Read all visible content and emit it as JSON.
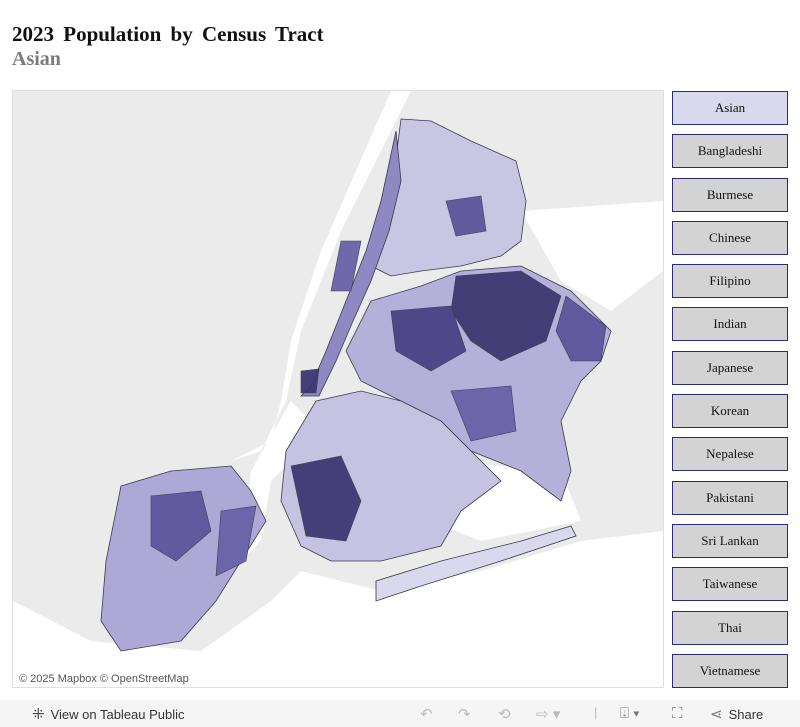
{
  "header": {
    "title": "2023 Population by Census Tract",
    "subtitle": "Asian"
  },
  "map": {
    "attribution": "© 2025 Mapbox  © OpenStreetMap",
    "colors": {
      "water": "#ffffff",
      "land": "#ebebeb",
      "low": "#d9d8ec",
      "mid": "#9e98cc",
      "high": "#5e559c",
      "highest": "#3d3670",
      "border": "#3a3a4a"
    }
  },
  "filters": {
    "selected": "Asian",
    "items": [
      "Asian",
      "Bangladeshi",
      "Burmese",
      "Chinese",
      "Filipino",
      "Indian",
      "Japanese",
      "Korean",
      "Nepalese",
      "Pakistani",
      "Sri Lankan",
      "Taiwanese",
      "Thai",
      "Vietnamese"
    ]
  },
  "toolbar": {
    "view_label": "View on Tableau Public",
    "share_label": "Share",
    "icons": [
      "tableau-logo-icon",
      "undo-icon",
      "redo-icon",
      "revert-icon",
      "refresh-icon",
      "download-icon",
      "fullscreen-icon",
      "share-icon"
    ]
  }
}
